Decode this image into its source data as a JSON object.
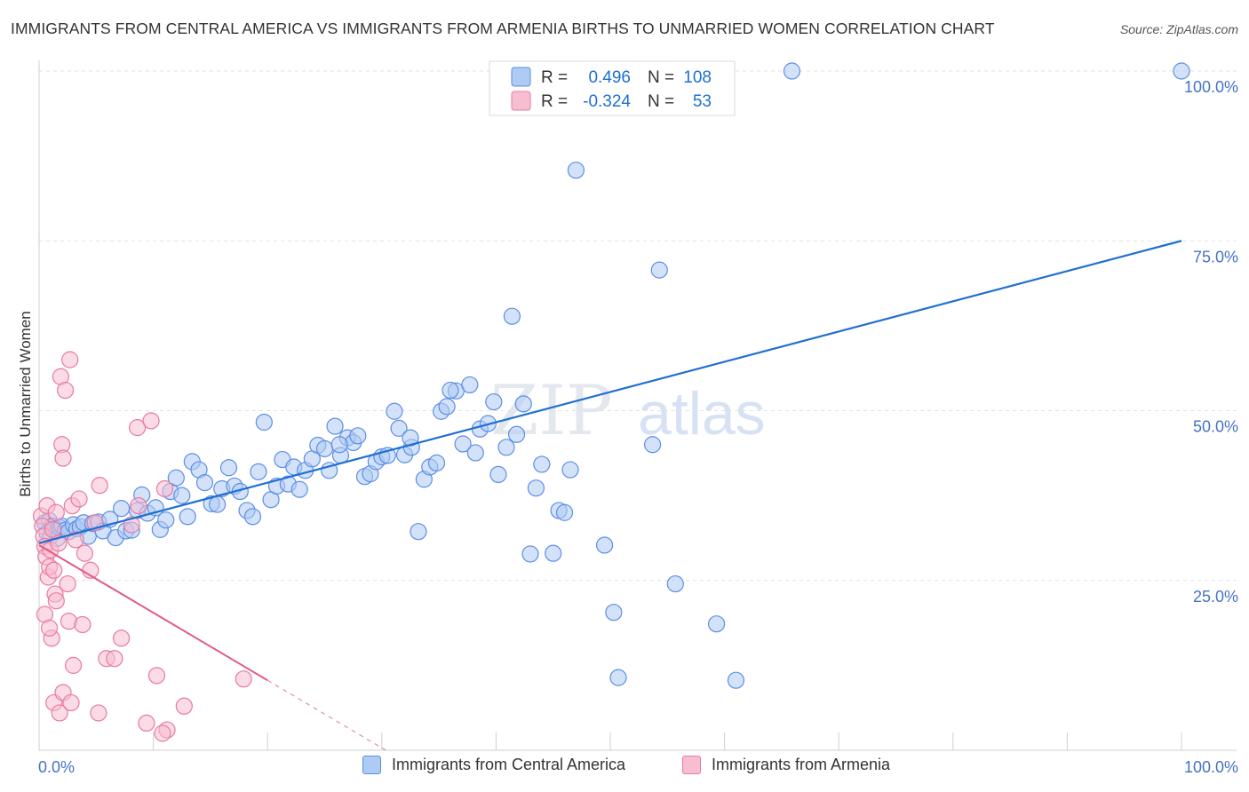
{
  "title": "IMMIGRANTS FROM CENTRAL AMERICA VS IMMIGRANTS FROM ARMENIA BIRTHS TO UNMARRIED WOMEN CORRELATION CHART",
  "source": "Source: ZipAtlas.com",
  "watermark": {
    "zip": "ZIP",
    "atlas": "atlas"
  },
  "legend": {
    "blue": {
      "r_label": "R =",
      "r_value": "0.496",
      "n_label": "N =",
      "n_value": "108"
    },
    "pink": {
      "r_label": "R =",
      "r_value": "-0.324",
      "n_label": "N =",
      "n_value": "53"
    }
  },
  "colors": {
    "blue": "#5b8ee6",
    "blue_fill": "#aecbf4",
    "blue_line": "#1f6fd1",
    "pink": "#e87aa0",
    "pink_fill": "#f7bdd0",
    "pink_line": "#e05a8a",
    "axis_text": "#4472c4"
  },
  "chart_data": {
    "type": "scatter",
    "title": "IMMIGRANTS FROM CENTRAL AMERICA VS IMMIGRANTS FROM ARMENIA BIRTHS TO UNMARRIED WOMEN CORRELATION CHART",
    "xlabel": "",
    "ylabel": "Births to Unmarried Women",
    "xlim": [
      0,
      100
    ],
    "ylim": [
      0,
      100
    ],
    "x_tick_labels": [
      "0.0%",
      "100.0%"
    ],
    "y_tick_labels": [
      "25.0%",
      "50.0%",
      "75.0%",
      "100.0%"
    ],
    "y_ticks": [
      25,
      50,
      75,
      100
    ],
    "grid": true,
    "legend_position": "top-center",
    "series": [
      {
        "name": "Immigrants from Central America",
        "color": "#5b8ee6",
        "trend": {
          "x": [
            0,
            100
          ],
          "y": [
            30.5,
            75
          ]
        },
        "points": [
          [
            0.5,
            33.5
          ],
          [
            0.7,
            32
          ],
          [
            0.9,
            33.8
          ],
          [
            1,
            31.5
          ],
          [
            1.2,
            33
          ],
          [
            1.4,
            32.5
          ],
          [
            1.6,
            31.2
          ],
          [
            1.8,
            32.8
          ],
          [
            2,
            33
          ],
          [
            2.3,
            32.4
          ],
          [
            2.6,
            32.2
          ],
          [
            3,
            33.2
          ],
          [
            3.3,
            32.6
          ],
          [
            3.6,
            32.9
          ],
          [
            3.9,
            33.5
          ],
          [
            4.3,
            31.5
          ],
          [
            4.7,
            33.4
          ],
          [
            5.2,
            33.6
          ],
          [
            5.6,
            32.3
          ],
          [
            6.2,
            34
          ],
          [
            6.7,
            31.3
          ],
          [
            7.2,
            35.6
          ],
          [
            7.6,
            32.3
          ],
          [
            8.1,
            32.4
          ],
          [
            8.6,
            35.3
          ],
          [
            9,
            37.6
          ],
          [
            9.5,
            34.9
          ],
          [
            10.2,
            35.7
          ],
          [
            10.6,
            32.5
          ],
          [
            11.1,
            33.9
          ],
          [
            11.5,
            38.1
          ],
          [
            12,
            40.1
          ],
          [
            12.5,
            37.5
          ],
          [
            13,
            34.4
          ],
          [
            13.4,
            42.5
          ],
          [
            14,
            41.3
          ],
          [
            14.5,
            39.4
          ],
          [
            15.1,
            36.3
          ],
          [
            15.6,
            36.2
          ],
          [
            16,
            38.5
          ],
          [
            16.6,
            41.6
          ],
          [
            17.1,
            38.9
          ],
          [
            17.6,
            38.1
          ],
          [
            18.2,
            35.3
          ],
          [
            18.7,
            34.4
          ],
          [
            19.2,
            41
          ],
          [
            19.7,
            48.3
          ],
          [
            20.3,
            36.9
          ],
          [
            20.8,
            38.9
          ],
          [
            21.3,
            42.8
          ],
          [
            21.8,
            39.2
          ],
          [
            22.3,
            41.7
          ],
          [
            22.8,
            38.4
          ],
          [
            23.3,
            41.2
          ],
          [
            23.9,
            42.9
          ],
          [
            24.4,
            44.9
          ],
          [
            25,
            44.4
          ],
          [
            25.4,
            41.2
          ],
          [
            25.9,
            47.7
          ],
          [
            26.4,
            43.4
          ],
          [
            27,
            46
          ],
          [
            27.5,
            45.3
          ],
          [
            27.9,
            46.3
          ],
          [
            28.5,
            40.3
          ],
          [
            29,
            40.7
          ],
          [
            29.5,
            42.5
          ],
          [
            30,
            43.2
          ],
          [
            30.5,
            43.4
          ],
          [
            31.1,
            49.9
          ],
          [
            31.5,
            47.4
          ],
          [
            32,
            43.5
          ],
          [
            32.6,
            44.6
          ],
          [
            33.2,
            32.2
          ],
          [
            33.7,
            39.9
          ],
          [
            34.2,
            41.7
          ],
          [
            34.8,
            42.3
          ],
          [
            35.2,
            49.9
          ],
          [
            35.7,
            50.6
          ],
          [
            36.5,
            52.9
          ],
          [
            37.1,
            45.1
          ],
          [
            37.7,
            53.8
          ],
          [
            38.2,
            43.8
          ],
          [
            38.6,
            47.3
          ],
          [
            39.3,
            48.1
          ],
          [
            39.8,
            51.3
          ],
          [
            40.2,
            40.6
          ],
          [
            40.9,
            44.6
          ],
          [
            41.4,
            63.9
          ],
          [
            41.8,
            46.5
          ],
          [
            42.4,
            51
          ],
          [
            43,
            28.9
          ],
          [
            43.5,
            38.6
          ],
          [
            44,
            42.1
          ],
          [
            45,
            29
          ],
          [
            45.5,
            35.3
          ],
          [
            46,
            35
          ],
          [
            46.5,
            41.3
          ],
          [
            47,
            85.4
          ],
          [
            49.5,
            30.2
          ],
          [
            50.3,
            20.3
          ],
          [
            53.7,
            45
          ],
          [
            54.3,
            70.7
          ],
          [
            55.7,
            24.5
          ],
          [
            50.7,
            10.7
          ],
          [
            61,
            10.3
          ],
          [
            59.3,
            18.6
          ],
          [
            58.3,
            100
          ],
          [
            65.9,
            100
          ],
          [
            100,
            100
          ],
          [
            26.3,
            45
          ],
          [
            36,
            53
          ],
          [
            32.5,
            46
          ]
        ]
      },
      {
        "name": "Immigrants from Armenia",
        "color": "#e87aa0",
        "trend": {
          "x": [
            0,
            20
          ],
          "y": [
            30.2,
            10.3
          ]
        },
        "points": [
          [
            0.2,
            34.5
          ],
          [
            0.3,
            33
          ],
          [
            0.4,
            31.5
          ],
          [
            0.5,
            30
          ],
          [
            0.6,
            28.5
          ],
          [
            0.7,
            36
          ],
          [
            0.8,
            25.5
          ],
          [
            0.9,
            27
          ],
          [
            1,
            29.5
          ],
          [
            1.2,
            32.5
          ],
          [
            1.3,
            26.5
          ],
          [
            1.4,
            23
          ],
          [
            1.5,
            35
          ],
          [
            1.7,
            30.5
          ],
          [
            1.9,
            55
          ],
          [
            2,
            45
          ],
          [
            2.1,
            43
          ],
          [
            2.3,
            53
          ],
          [
            2.5,
            24.5
          ],
          [
            2.7,
            57.5
          ],
          [
            2.9,
            36
          ],
          [
            3.2,
            31
          ],
          [
            3.5,
            37
          ],
          [
            4,
            29
          ],
          [
            4.5,
            26.5
          ],
          [
            4.9,
            33.5
          ],
          [
            5.3,
            39
          ],
          [
            5.9,
            13.5
          ],
          [
            6.6,
            13.5
          ],
          [
            7.2,
            16.5
          ],
          [
            8.1,
            33.2
          ],
          [
            8.6,
            47.5
          ],
          [
            9.4,
            4
          ],
          [
            9.8,
            48.5
          ],
          [
            10.3,
            11
          ],
          [
            11,
            38.5
          ],
          [
            11.2,
            3
          ],
          [
            12.7,
            6.5
          ],
          [
            1.1,
            16.5
          ],
          [
            1.3,
            7
          ],
          [
            2.1,
            8.5
          ],
          [
            2.6,
            19
          ],
          [
            3,
            12.5
          ],
          [
            3.8,
            18.5
          ],
          [
            5.2,
            5.5
          ],
          [
            8.7,
            36
          ],
          [
            10.8,
            2.5
          ],
          [
            17.9,
            10.5
          ],
          [
            1.8,
            5.5
          ],
          [
            2.8,
            7
          ],
          [
            0.5,
            20
          ],
          [
            0.9,
            18
          ],
          [
            1.5,
            22
          ]
        ]
      }
    ]
  },
  "bottom_legend": {
    "blue_label": "Immigrants from Central America",
    "pink_label": "Immigrants from Armenia"
  }
}
